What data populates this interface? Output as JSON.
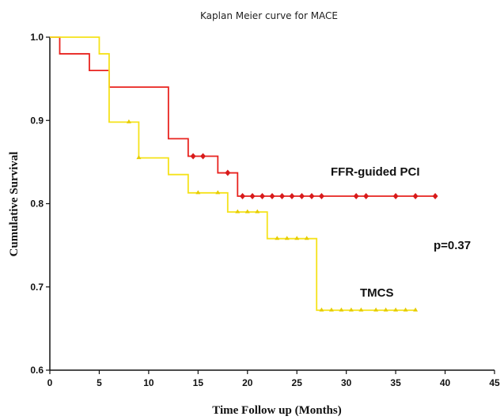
{
  "chart_data": {
    "type": "line",
    "title": "Kaplan Meier curve for MACE",
    "xlabel": "Time Follow up (Months)",
    "ylabel": "Cumulative Survival",
    "xlim": [
      0,
      45
    ],
    "ylim": [
      0.6,
      1.0
    ],
    "x_ticks": [
      "0",
      "5",
      "10",
      "15",
      "20",
      "25",
      "30",
      "35",
      "40",
      "45"
    ],
    "y_ticks": [
      "0.6",
      "0.7",
      "0.8",
      "0.9",
      "1.0"
    ],
    "grid": false,
    "series": [
      {
        "name": "FFR-guided PCI",
        "color": "#e8231f",
        "marker_color": "#d81b1b",
        "steps": [
          [
            0,
            1.0
          ],
          [
            1,
            0.98
          ],
          [
            4,
            0.96
          ],
          [
            6,
            0.94
          ],
          [
            12,
            0.878
          ],
          [
            14,
            0.857
          ],
          [
            17,
            0.837
          ],
          [
            19,
            0.809
          ],
          [
            39,
            0.809
          ]
        ],
        "censored": [
          [
            14.5,
            0.857
          ],
          [
            15.5,
            0.857
          ],
          [
            18,
            0.837
          ],
          [
            19.5,
            0.809
          ],
          [
            20.5,
            0.809
          ],
          [
            21.5,
            0.809
          ],
          [
            22.5,
            0.809
          ],
          [
            23.5,
            0.809
          ],
          [
            24.5,
            0.809
          ],
          [
            25.5,
            0.809
          ],
          [
            26.5,
            0.809
          ],
          [
            27.5,
            0.809
          ],
          [
            31,
            0.809
          ],
          [
            32,
            0.809
          ],
          [
            35,
            0.809
          ],
          [
            37,
            0.809
          ],
          [
            39,
            0.809
          ]
        ]
      },
      {
        "name": "TMCS",
        "color": "#f5e21a",
        "marker_color": "#e6cc00",
        "steps": [
          [
            0,
            1.0
          ],
          [
            5,
            0.98
          ],
          [
            6,
            0.898
          ],
          [
            9,
            0.855
          ],
          [
            12,
            0.835
          ],
          [
            14,
            0.813
          ],
          [
            18,
            0.79
          ],
          [
            22,
            0.758
          ],
          [
            27,
            0.672
          ],
          [
            37,
            0.672
          ]
        ],
        "censored": [
          [
            8,
            0.898
          ],
          [
            9,
            0.855
          ],
          [
            15,
            0.813
          ],
          [
            17,
            0.813
          ],
          [
            19,
            0.79
          ],
          [
            20,
            0.79
          ],
          [
            21,
            0.79
          ],
          [
            23,
            0.758
          ],
          [
            24,
            0.758
          ],
          [
            25,
            0.758
          ],
          [
            26,
            0.758
          ],
          [
            27.5,
            0.672
          ],
          [
            28.5,
            0.672
          ],
          [
            29.5,
            0.672
          ],
          [
            30.5,
            0.672
          ],
          [
            31.5,
            0.672
          ],
          [
            33,
            0.672
          ],
          [
            34,
            0.672
          ],
          [
            35,
            0.672
          ],
          [
            36,
            0.672
          ],
          [
            37,
            0.672
          ]
        ]
      }
    ],
    "annotations": {
      "ffr_label": "FFR-guided PCI",
      "tmcs_label": "TMCS",
      "p_value": "p=0.37"
    }
  }
}
